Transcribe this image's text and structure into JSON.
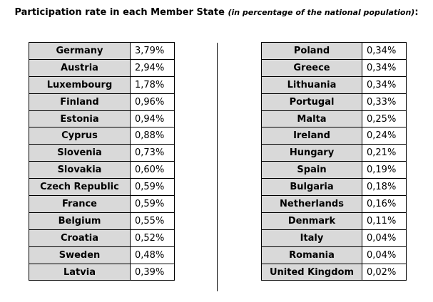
{
  "heading": {
    "title": "Participation rate in each Member State",
    "subtitle": "(in percentage of the national population)",
    "suffix": ":"
  },
  "tables": [
    {
      "rows": [
        {
          "country": "Germany",
          "rate": "3,79%"
        },
        {
          "country": "Austria",
          "rate": "2,94%"
        },
        {
          "country": "Luxembourg",
          "rate": "1,78%"
        },
        {
          "country": "Finland",
          "rate": "0,96%"
        },
        {
          "country": "Estonia",
          "rate": "0,94%"
        },
        {
          "country": "Cyprus",
          "rate": "0,88%"
        },
        {
          "country": "Slovenia",
          "rate": "0,73%"
        },
        {
          "country": "Slovakia",
          "rate": "0,60%"
        },
        {
          "country": "Czech Republic",
          "rate": "0,59%"
        },
        {
          "country": "France",
          "rate": "0,59%"
        },
        {
          "country": "Belgium",
          "rate": "0,55%"
        },
        {
          "country": "Croatia",
          "rate": "0,52%"
        },
        {
          "country": "Sweden",
          "rate": "0,48%"
        },
        {
          "country": "Latvia",
          "rate": "0,39%"
        }
      ]
    },
    {
      "rows": [
        {
          "country": "Poland",
          "rate": "0,34%"
        },
        {
          "country": "Greece",
          "rate": "0,34%"
        },
        {
          "country": "Lithuania",
          "rate": "0,34%"
        },
        {
          "country": "Portugal",
          "rate": "0,33%"
        },
        {
          "country": "Malta",
          "rate": "0,25%"
        },
        {
          "country": "Ireland",
          "rate": "0,24%"
        },
        {
          "country": "Hungary",
          "rate": "0,21%"
        },
        {
          "country": "Spain",
          "rate": "0,19%"
        },
        {
          "country": "Bulgaria",
          "rate": "0,18%"
        },
        {
          "country": "Netherlands",
          "rate": "0,16%"
        },
        {
          "country": "Denmark",
          "rate": "0,11%"
        },
        {
          "country": "Italy",
          "rate": "0,04%"
        },
        {
          "country": "Romania",
          "rate": "0,04%"
        },
        {
          "country": "United Kingdom",
          "rate": "0,02%"
        }
      ]
    }
  ],
  "colors": {
    "country_cell_background": "#d9d9d9",
    "value_cell_background": "#ffffff",
    "border": "#000000"
  }
}
